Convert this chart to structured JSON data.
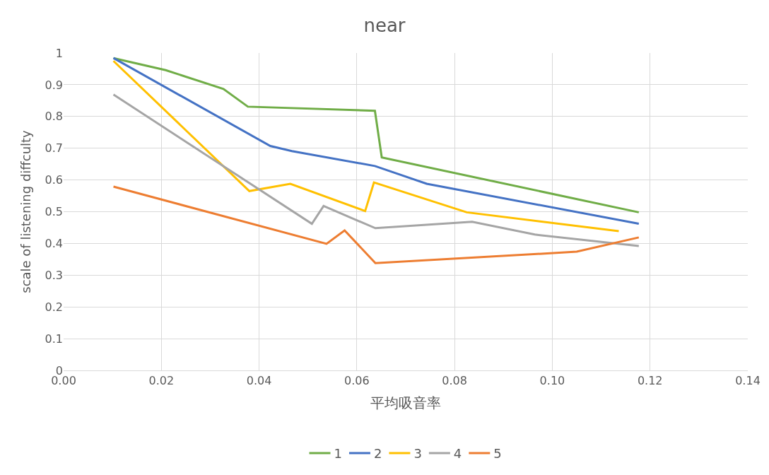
{
  "chart_data": {
    "type": "line",
    "title": "near",
    "xlabel": "平均吸音率",
    "ylabel": "scale of listening diffculty",
    "xlim": [
      0,
      0.14
    ],
    "xticks": [
      {
        "value": 0,
        "label": "0.00"
      },
      {
        "value": 0.02,
        "label": "0.02"
      },
      {
        "value": 0.04,
        "label": "0.04"
      },
      {
        "value": 0.06,
        "label": "0.06"
      },
      {
        "value": 0.08,
        "label": "0.08"
      },
      {
        "value": 0.1,
        "label": "0.10"
      },
      {
        "value": 0.12,
        "label": "0.12"
      },
      {
        "value": 0.14,
        "label": "0.14"
      }
    ],
    "ylim": [
      0,
      1
    ],
    "yticks": [
      0,
      0.1,
      0.2,
      0.3,
      0.4,
      0.5,
      0.6,
      0.7,
      0.8,
      0.9,
      1
    ],
    "grid": true,
    "legend": "bottom",
    "marker": "none",
    "line_style": "solid",
    "series": [
      {
        "name": "1",
        "color": "#70ad47",
        "x": [
          0.0102,
          0.0209,
          0.0327,
          0.0377,
          0.0637,
          0.0651,
          0.1177
        ],
        "values": [
          0.984,
          0.946,
          0.887,
          0.831,
          0.818,
          0.671,
          0.498
        ]
      },
      {
        "name": "2",
        "color": "#4472c4",
        "x": [
          0.0102,
          0.0423,
          0.0467,
          0.0637,
          0.0743,
          0.1177
        ],
        "values": [
          0.984,
          0.707,
          0.691,
          0.644,
          0.588,
          0.462
        ]
      },
      {
        "name": "3",
        "color": "#ffc000",
        "x": [
          0.0102,
          0.038,
          0.0464,
          0.0617,
          0.0635,
          0.0825,
          0.1136
        ],
        "values": [
          0.975,
          0.565,
          0.588,
          0.502,
          0.592,
          0.498,
          0.439
        ]
      },
      {
        "name": "4",
        "color": "#a5a5a5",
        "x": [
          0.0102,
          0.0508,
          0.0532,
          0.0638,
          0.0836,
          0.0964,
          0.1177
        ],
        "values": [
          0.869,
          0.462,
          0.518,
          0.448,
          0.468,
          0.428,
          0.392
        ]
      },
      {
        "name": "5",
        "color": "#ed7d31",
        "x": [
          0.0102,
          0.0538,
          0.0575,
          0.0638,
          0.105,
          0.1177
        ],
        "values": [
          0.579,
          0.399,
          0.441,
          0.338,
          0.374,
          0.419
        ]
      }
    ]
  }
}
